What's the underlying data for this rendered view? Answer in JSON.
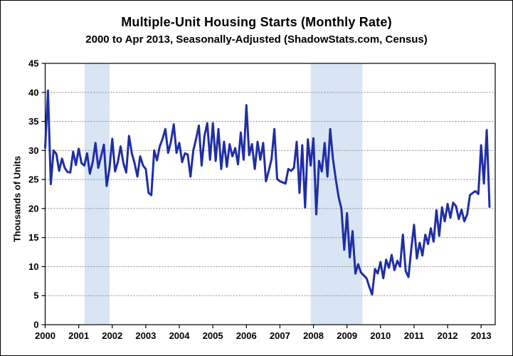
{
  "chart_data": {
    "type": "line",
    "title": "Multiple-Unit Housing Starts (Monthly Rate)",
    "subtitle": "2000 to Apr 2013, Seasonally-Adjusted (ShadowStats.com, Census)",
    "ylabel": "Thousands of Units",
    "xlabel": "",
    "frequency": "monthly",
    "start": "2000-01",
    "end": "2013-04",
    "ylim": [
      0,
      45
    ],
    "x_domain": [
      2000,
      2013.42
    ],
    "y_ticks": [
      0,
      5,
      10,
      15,
      20,
      25,
      30,
      35,
      40,
      45
    ],
    "x_ticks": [
      2000,
      2001,
      2002,
      2003,
      2004,
      2005,
      2006,
      2007,
      2008,
      2009,
      2010,
      2011,
      2012,
      2013
    ],
    "grid": "horizontal-dotted",
    "legend": "none",
    "recession_bands": [
      {
        "label": "2001 recession",
        "start_year": 2001.17,
        "end_year": 2001.92
      },
      {
        "label": "2007-2009 recession",
        "start_year": 2007.92,
        "end_year": 2009.46
      }
    ],
    "series": [
      {
        "name": "Multiple-unit housing starts (thousands of units, monthly rate)",
        "values": [
          30.5,
          40.3,
          24.2,
          30.0,
          29.4,
          26.5,
          28.6,
          27.0,
          26.3,
          26.2,
          29.8,
          27.5,
          30.3,
          27.8,
          27.4,
          29.5,
          26.0,
          28.0,
          31.3,
          27.0,
          29.0,
          31.0,
          23.9,
          26.8,
          32.0,
          26.4,
          28.0,
          30.7,
          27.8,
          26.2,
          32.5,
          29.5,
          27.8,
          25.5,
          29.0,
          27.4,
          26.8,
          22.7,
          22.3,
          30.0,
          28.3,
          30.7,
          32.0,
          33.7,
          29.6,
          31.5,
          34.5,
          29.6,
          31.3,
          28.0,
          29.5,
          29.3,
          25.5,
          30.0,
          32.0,
          34.3,
          27.4,
          32.5,
          34.7,
          28.4,
          34.7,
          28.2,
          33.7,
          26.8,
          31.5,
          27.2,
          31.1,
          29.0,
          30.4,
          27.6,
          33.1,
          28.4,
          37.8,
          29.2,
          31.1,
          26.8,
          31.5,
          28.4,
          31.3,
          24.7,
          26.5,
          28.5,
          33.7,
          25.1,
          24.7,
          24.5,
          24.3,
          26.8,
          26.5,
          27.0,
          31.5,
          22.7,
          30.9,
          20.2,
          31.9,
          27.4,
          32.1,
          19.0,
          28.2,
          26.4,
          31.3,
          25.5,
          33.7,
          28.5,
          25.0,
          22.0,
          20.0,
          12.9,
          19.2,
          11.6,
          16.1,
          8.8,
          10.4,
          9.0,
          8.5,
          8.0,
          6.5,
          5.2,
          9.6,
          8.8,
          10.8,
          8.0,
          11.2,
          9.8,
          12.0,
          9.4,
          11.0,
          10.0,
          15.5,
          9.2,
          8.2,
          13.0,
          17.2,
          11.4,
          14.1,
          11.9,
          15.5,
          13.9,
          16.6,
          14.3,
          19.7,
          15.3,
          20.2,
          17.8,
          20.8,
          18.4,
          21.0,
          20.4,
          18.2,
          19.8,
          17.8,
          19.0,
          22.3,
          22.7,
          23.0,
          22.5,
          30.9,
          24.3,
          33.5,
          20.3
        ]
      }
    ],
    "colors": {
      "line": "#1f2ea6",
      "band": "#c6d9ee",
      "band_dot": "#eaf1f9",
      "grid": "#8a8a8a",
      "axis": "#000000",
      "background": "#ffffff"
    }
  }
}
